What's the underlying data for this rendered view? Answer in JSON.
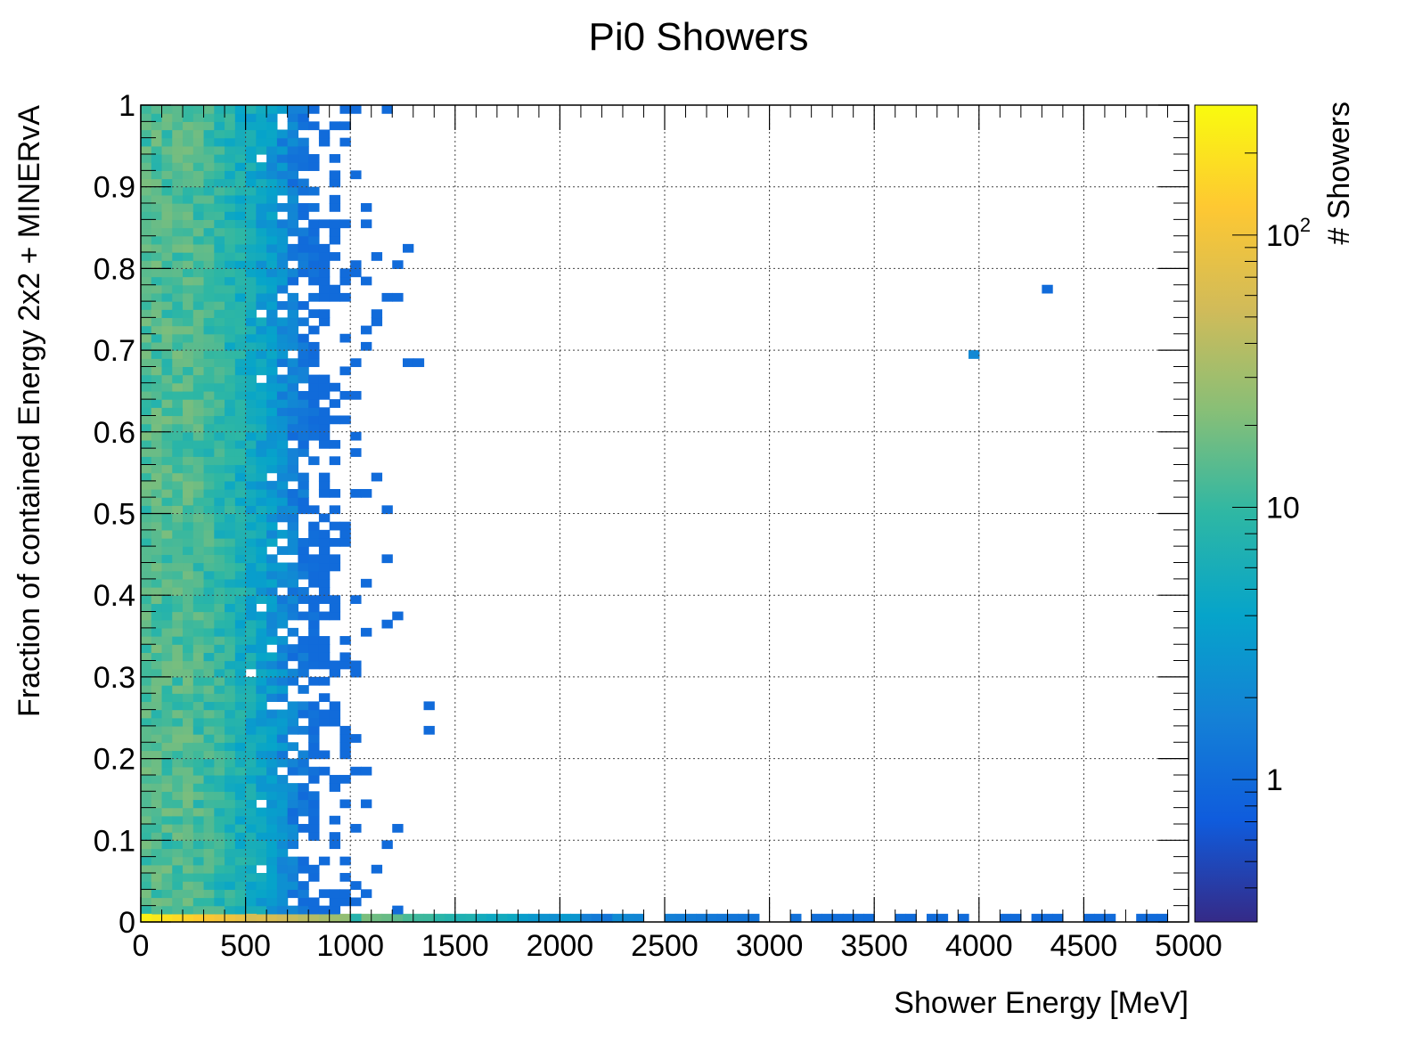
{
  "chart_data": {
    "type": "heatmap",
    "title": "Pi0 Showers",
    "xlabel": "Shower Energy [MeV]",
    "ylabel": "Fraction of contained Energy 2x2 + MINERvA",
    "colorbar_label": "# Showers",
    "xlim": [
      0,
      5000
    ],
    "ylim": [
      0,
      1
    ],
    "x_ticks": [
      "0",
      "500",
      "1000",
      "1500",
      "2000",
      "2500",
      "3000",
      "3500",
      "4000",
      "4500",
      "5000"
    ],
    "y_ticks": [
      "0",
      "0.1",
      "0.2",
      "0.3",
      "0.4",
      "0.5",
      "0.6",
      "0.7",
      "0.8",
      "0.9",
      "1"
    ],
    "colorbar_ticks": [
      {
        "value": 1,
        "label": "1"
      },
      {
        "value": 10,
        "label": "10"
      },
      {
        "value": 100,
        "label": "10",
        "sup": "2"
      }
    ],
    "z_scale": "log",
    "z_range": [
      0.3,
      300
    ],
    "bins_x": 100,
    "bins_y": 100,
    "grid": true,
    "colormap": [
      "#352a87",
      "#0f5cdd",
      "#1481d6",
      "#06a4ca",
      "#2eb7a4",
      "#87bf77",
      "#d1bb59",
      "#fec832",
      "#f9fb0e"
    ],
    "sample_cells": [
      {
        "x": 25,
        "y": 0.005,
        "z": 250
      },
      {
        "x": 525,
        "y": 0.005,
        "z": 60
      },
      {
        "x": 1025,
        "y": 0.005,
        "z": 8
      },
      {
        "x": 225,
        "y": 0.505,
        "z": 10
      },
      {
        "x": 3975,
        "y": 0.695,
        "z": 2
      },
      {
        "x": 4325,
        "y": 0.775,
        "z": 1
      }
    ]
  }
}
